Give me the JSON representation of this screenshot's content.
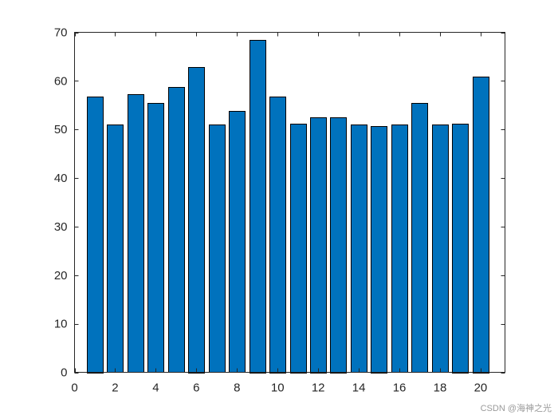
{
  "chart_data": {
    "type": "bar",
    "x": [
      1,
      2,
      3,
      4,
      5,
      6,
      7,
      8,
      9,
      10,
      11,
      12,
      13,
      14,
      15,
      16,
      17,
      18,
      19,
      20
    ],
    "values": [
      56.8,
      51.0,
      57.2,
      55.4,
      58.7,
      62.9,
      51.0,
      53.8,
      68.5,
      56.8,
      51.2,
      52.5,
      52.5,
      51.0,
      50.7,
      51.0,
      55.4,
      51.0,
      51.2,
      60.9
    ],
    "title": "",
    "xlabel": "",
    "ylabel": "",
    "xlim": [
      0,
      21.2
    ],
    "ylim": [
      0,
      70
    ],
    "xticks": [
      0,
      2,
      4,
      6,
      8,
      10,
      12,
      14,
      16,
      18,
      20
    ],
    "yticks": [
      0,
      10,
      20,
      30,
      40,
      50,
      60,
      70
    ],
    "bar_color": "#0072BD",
    "edge_color": "#000000",
    "grid": false,
    "box": true
  },
  "watermark": "CSDN @海神之光"
}
